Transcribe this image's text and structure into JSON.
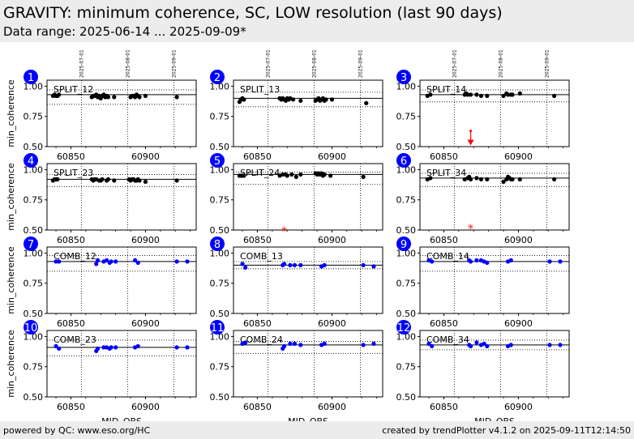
{
  "header": {
    "title": "GRAVITY: minimum coherence, SC, LOW resolution (last 90 days)",
    "subtitle": "Data range: 2025-06-14 ... 2025-09-09*"
  },
  "footer": {
    "left": "powered by QC: www.eso.org/HC",
    "right": "created by trendPlotter v4.1.2 on 2025-09-11T12:14:50"
  },
  "colors": {
    "split_points": "#000000",
    "comb_points": "#0000ff",
    "outlier": "#ff0000",
    "badge": "#0000ff",
    "header_bg": "#ececec"
  },
  "chart_data": {
    "type": "scatter",
    "xlabel": "MJD_OBS",
    "ylabel": "min_coherence",
    "xlim": [
      60834,
      60934
    ],
    "ylim": [
      0.5,
      1.05
    ],
    "x_ticks": [
      60850,
      60900
    ],
    "y_ticks": [
      "0.50",
      "0.75",
      "1.00"
    ],
    "date_markers": [
      {
        "label": "2025-07-01",
        "mjd": 60857
      },
      {
        "label": "2025-08-01",
        "mjd": 60888
      },
      {
        "label": "2025-09-01",
        "mjd": 60919
      }
    ],
    "panels": [
      {
        "num": "1",
        "label": "SPLIT_12",
        "color": "black",
        "ref": 0.93,
        "lim_hi": 0.97,
        "lim_lo": 0.85,
        "points": [
          [
            60838,
            0.92
          ],
          [
            60839,
            0.93
          ],
          [
            60840,
            0.92
          ],
          [
            60841,
            0.92
          ],
          [
            60842,
            0.93
          ],
          [
            60864,
            0.91
          ],
          [
            60865,
            0.92
          ],
          [
            60866,
            0.92
          ],
          [
            60867,
            0.93
          ],
          [
            60868,
            0.91
          ],
          [
            60869,
            0.92
          ],
          [
            60870,
            0.9
          ],
          [
            60871,
            0.92
          ],
          [
            60872,
            0.93
          ],
          [
            60873,
            0.91
          ],
          [
            60874,
            0.92
          ],
          [
            60875,
            0.91
          ],
          [
            60879,
            0.91
          ],
          [
            60890,
            0.91
          ],
          [
            60891,
            0.92
          ],
          [
            60892,
            0.92
          ],
          [
            60893,
            0.91
          ],
          [
            60894,
            0.93
          ],
          [
            60895,
            0.92
          ],
          [
            60896,
            0.91
          ],
          [
            60900,
            0.92
          ],
          [
            60921,
            0.91
          ]
        ],
        "outliers": []
      },
      {
        "num": "2",
        "label": "SPLIT_13",
        "color": "black",
        "ref": 0.9,
        "lim_hi": 0.95,
        "lim_lo": 0.83,
        "points": [
          [
            60838,
            0.87
          ],
          [
            60839,
            0.89
          ],
          [
            60840,
            0.9
          ],
          [
            60841,
            0.89
          ],
          [
            60865,
            0.9
          ],
          [
            60866,
            0.89
          ],
          [
            60867,
            0.9
          ],
          [
            60868,
            0.89
          ],
          [
            60869,
            0.88
          ],
          [
            60870,
            0.9
          ],
          [
            60871,
            0.89
          ],
          [
            60872,
            0.9
          ],
          [
            60874,
            0.89
          ],
          [
            60879,
            0.88
          ],
          [
            60889,
            0.88
          ],
          [
            60890,
            0.89
          ],
          [
            60891,
            0.9
          ],
          [
            60892,
            0.88
          ],
          [
            60893,
            0.89
          ],
          [
            60894,
            0.9
          ],
          [
            60895,
            0.88
          ],
          [
            60896,
            0.89
          ],
          [
            60900,
            0.89
          ],
          [
            60923,
            0.86
          ]
        ],
        "outliers": []
      },
      {
        "num": "3",
        "label": "SPLIT_14",
        "color": "black",
        "ref": 0.93,
        "lim_hi": 0.97,
        "lim_lo": 0.87,
        "points": [
          [
            60839,
            0.92
          ],
          [
            60841,
            0.93
          ],
          [
            60864,
            0.93
          ],
          [
            60865,
            0.94
          ],
          [
            60866,
            0.93
          ],
          [
            60868,
            0.93
          ],
          [
            60872,
            0.93
          ],
          [
            60875,
            0.92
          ],
          [
            60879,
            0.92
          ],
          [
            60890,
            0.92
          ],
          [
            60892,
            0.94
          ],
          [
            60893,
            0.93
          ],
          [
            60895,
            0.93
          ],
          [
            60896,
            0.93
          ],
          [
            60901,
            0.94
          ],
          [
            60924,
            0.92
          ]
        ],
        "outliers": [
          {
            "x": 60868,
            "y": 0.53,
            "err_hi": 0.63,
            "arrow": true
          }
        ]
      },
      {
        "num": "4",
        "label": "SPLIT_23",
        "color": "black",
        "ref": 0.92,
        "lim_hi": 0.96,
        "lim_lo": 0.86,
        "points": [
          [
            60838,
            0.91
          ],
          [
            60839,
            0.92
          ],
          [
            60840,
            0.92
          ],
          [
            60841,
            0.92
          ],
          [
            60864,
            0.92
          ],
          [
            60865,
            0.91
          ],
          [
            60866,
            0.92
          ],
          [
            60867,
            0.92
          ],
          [
            60869,
            0.91
          ],
          [
            60870,
            0.91
          ],
          [
            60871,
            0.92
          ],
          [
            60874,
            0.91
          ],
          [
            60875,
            0.92
          ],
          [
            60879,
            0.91
          ],
          [
            60889,
            0.92
          ],
          [
            60890,
            0.91
          ],
          [
            60891,
            0.92
          ],
          [
            60892,
            0.92
          ],
          [
            60893,
            0.91
          ],
          [
            60894,
            0.91
          ],
          [
            60895,
            0.92
          ],
          [
            60896,
            0.91
          ],
          [
            60900,
            0.9
          ],
          [
            60921,
            0.91
          ]
        ],
        "outliers": []
      },
      {
        "num": "5",
        "label": "SPLIT_24",
        "color": "black",
        "ref": 0.96,
        "lim_hi": 0.98,
        "lim_lo": 0.88,
        "points": [
          [
            60838,
            0.95
          ],
          [
            60839,
            0.95
          ],
          [
            60840,
            0.95
          ],
          [
            60841,
            0.95
          ],
          [
            60865,
            0.95
          ],
          [
            60867,
            0.96
          ],
          [
            60869,
            0.96
          ],
          [
            60870,
            0.95
          ],
          [
            60873,
            0.96
          ],
          [
            60876,
            0.94
          ],
          [
            60879,
            0.96
          ],
          [
            60889,
            0.97
          ],
          [
            60890,
            0.96
          ],
          [
            60891,
            0.97
          ],
          [
            60892,
            0.96
          ],
          [
            60893,
            0.97
          ],
          [
            60894,
            0.95
          ],
          [
            60895,
            0.96
          ],
          [
            60899,
            0.95
          ],
          [
            60921,
            0.94
          ]
        ],
        "outliers": [
          {
            "x": 60868,
            "y": 0.51,
            "err_hi": null,
            "arrow": false
          }
        ]
      },
      {
        "num": "6",
        "label": "SPLIT_34",
        "color": "black",
        "ref": 0.93,
        "lim_hi": 0.97,
        "lim_lo": 0.86,
        "points": [
          [
            60839,
            0.92
          ],
          [
            60841,
            0.93
          ],
          [
            60864,
            0.92
          ],
          [
            60866,
            0.93
          ],
          [
            60867,
            0.94
          ],
          [
            60868,
            0.92
          ],
          [
            60872,
            0.93
          ],
          [
            60875,
            0.92
          ],
          [
            60879,
            0.92
          ],
          [
            60890,
            0.9
          ],
          [
            60892,
            0.92
          ],
          [
            60893,
            0.94
          ],
          [
            60894,
            0.93
          ],
          [
            60895,
            0.92
          ],
          [
            60896,
            0.92
          ],
          [
            60901,
            0.92
          ],
          [
            60924,
            0.92
          ]
        ],
        "outliers": [
          {
            "x": 60868,
            "y": 0.53,
            "err_hi": null,
            "arrow": false
          }
        ]
      },
      {
        "num": "7",
        "label": "COMB_12",
        "color": "blue",
        "ref": 0.93,
        "lim_hi": 0.98,
        "lim_lo": 0.85,
        "points": [
          [
            60840,
            0.93
          ],
          [
            60842,
            0.93
          ],
          [
            60867,
            0.91
          ],
          [
            60868,
            0.94
          ],
          [
            60872,
            0.93
          ],
          [
            60874,
            0.94
          ],
          [
            60876,
            0.92
          ],
          [
            60877,
            0.93
          ],
          [
            60880,
            0.93
          ],
          [
            60893,
            0.94
          ],
          [
            60895,
            0.92
          ],
          [
            60921,
            0.93
          ],
          [
            60928,
            0.93
          ]
        ],
        "outliers": []
      },
      {
        "num": "8",
        "label": "COMB_13",
        "color": "blue",
        "ref": 0.9,
        "lim_hi": 0.93,
        "lim_lo": 0.87,
        "points": [
          [
            60840,
            0.91
          ],
          [
            60842,
            0.88
          ],
          [
            60867,
            0.9
          ],
          [
            60868,
            0.91
          ],
          [
            60872,
            0.9
          ],
          [
            60875,
            0.9
          ],
          [
            60879,
            0.9
          ],
          [
            60893,
            0.89
          ],
          [
            60895,
            0.9
          ],
          [
            60921,
            0.9
          ],
          [
            60928,
            0.89
          ]
        ],
        "outliers": []
      },
      {
        "num": "9",
        "label": "COMB_14",
        "color": "blue",
        "ref": 0.93,
        "lim_hi": 0.98,
        "lim_lo": 0.85,
        "points": [
          [
            60840,
            0.94
          ],
          [
            60842,
            0.93
          ],
          [
            60867,
            0.94
          ],
          [
            60868,
            0.93
          ],
          [
            60872,
            0.94
          ],
          [
            60875,
            0.94
          ],
          [
            60877,
            0.93
          ],
          [
            60879,
            0.92
          ],
          [
            60893,
            0.93
          ],
          [
            60895,
            0.94
          ],
          [
            60921,
            0.93
          ],
          [
            60928,
            0.93
          ]
        ],
        "outliers": []
      },
      {
        "num": "10",
        "label": "COMB_23",
        "color": "blue",
        "ref": 0.91,
        "lim_hi": 0.97,
        "lim_lo": 0.84,
        "points": [
          [
            60840,
            0.92
          ],
          [
            60842,
            0.9
          ],
          [
            60867,
            0.88
          ],
          [
            60868,
            0.9
          ],
          [
            60872,
            0.91
          ],
          [
            60874,
            0.91
          ],
          [
            60876,
            0.9
          ],
          [
            60877,
            0.91
          ],
          [
            60880,
            0.91
          ],
          [
            60893,
            0.91
          ],
          [
            60895,
            0.92
          ],
          [
            60921,
            0.91
          ],
          [
            60928,
            0.91
          ]
        ],
        "outliers": []
      },
      {
        "num": "11",
        "label": "COMB_24",
        "color": "blue",
        "ref": 0.93,
        "lim_hi": 0.96,
        "lim_lo": 0.86,
        "points": [
          [
            60840,
            0.94
          ],
          [
            60842,
            0.95
          ],
          [
            60867,
            0.9
          ],
          [
            60868,
            0.92
          ],
          [
            60872,
            0.94
          ],
          [
            60875,
            0.94
          ],
          [
            60879,
            0.93
          ],
          [
            60893,
            0.93
          ],
          [
            60895,
            0.94
          ],
          [
            60921,
            0.93
          ],
          [
            60928,
            0.94
          ]
        ],
        "outliers": []
      },
      {
        "num": "12",
        "label": "COMB_34",
        "color": "blue",
        "ref": 0.93,
        "lim_hi": 0.97,
        "lim_lo": 0.89,
        "points": [
          [
            60840,
            0.94
          ],
          [
            60842,
            0.92
          ],
          [
            60867,
            0.93
          ],
          [
            60868,
            0.92
          ],
          [
            60872,
            0.95
          ],
          [
            60875,
            0.93
          ],
          [
            60877,
            0.94
          ],
          [
            60879,
            0.92
          ],
          [
            60893,
            0.92
          ],
          [
            60895,
            0.93
          ],
          [
            60921,
            0.93
          ],
          [
            60928,
            0.93
          ]
        ],
        "outliers": []
      }
    ]
  }
}
